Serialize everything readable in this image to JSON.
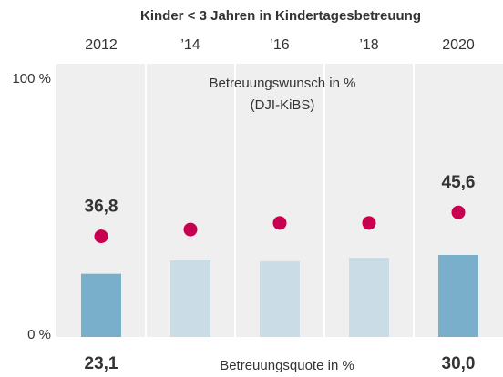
{
  "chart_data": {
    "type": "bar+dot",
    "title": "Kinder < 3 Jahren in Kindertagesbetreuung",
    "categories": [
      "2012",
      "’14",
      "’16",
      "’18",
      "2020"
    ],
    "ylim": [
      0,
      100
    ],
    "yticks": [
      {
        "value": 0,
        "label": "0 %"
      },
      {
        "value": 100,
        "label": "100 %"
      }
    ],
    "series": [
      {
        "name": "Betreuungsquote in %",
        "kind": "bar",
        "colors": [
          "#79afca",
          "#cadde6",
          "#cadde6",
          "#cadde6",
          "#79afca"
        ],
        "values": [
          23.1,
          28.0,
          27.7,
          29.0,
          30.0
        ],
        "value_labels": [
          "23,1",
          null,
          null,
          null,
          "30,0"
        ]
      },
      {
        "name": "Betreuungswunsch in %",
        "source": "(DJI-KiBS)",
        "kind": "dot",
        "color": "#c8004f",
        "values": [
          36.8,
          39.3,
          41.7,
          41.7,
          45.6
        ],
        "value_labels": [
          "36,8",
          null,
          null,
          null,
          "45,6"
        ]
      }
    ]
  }
}
